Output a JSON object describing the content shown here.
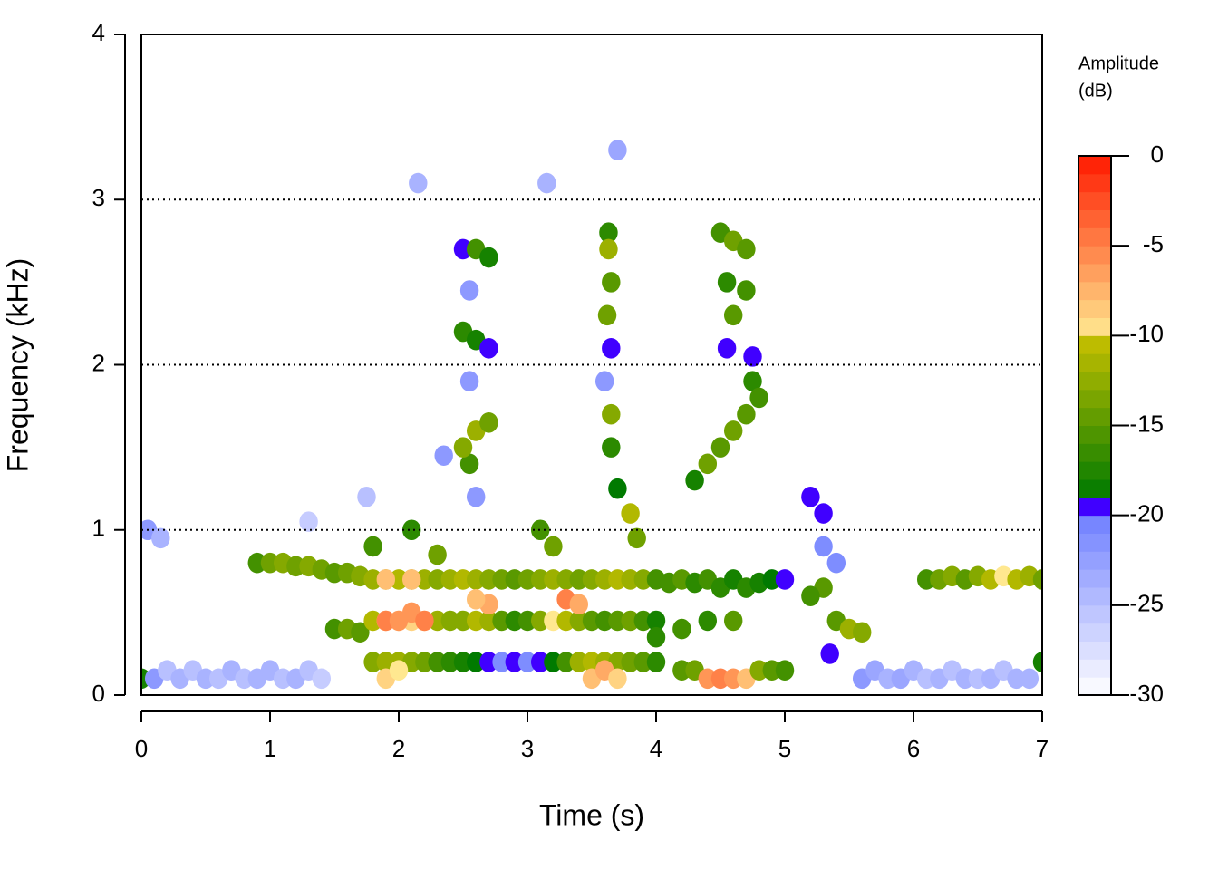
{
  "chart_data": {
    "type": "spectrogram",
    "xlabel": "Time (s)",
    "ylabel": "Frequency (kHz)",
    "xlim": [
      0,
      7
    ],
    "xticks": [
      0,
      1,
      2,
      3,
      4,
      5,
      6,
      7
    ],
    "ylim": [
      0,
      4
    ],
    "yticks": [
      0,
      1,
      2,
      3,
      4
    ],
    "grid": "dotted",
    "colorbar_title": [
      "Amplitude",
      "(dB)"
    ],
    "zlim": [
      -30,
      0
    ],
    "zticks": [
      0,
      -5,
      -10,
      -15,
      -20,
      -25,
      -30
    ],
    "colorscale": [
      [
        -30,
        -20,
        "#ffffff",
        "#7080ff"
      ],
      [
        -20,
        -19,
        "#4000ff",
        "#4000ff"
      ],
      [
        -19,
        -10,
        "#007a00",
        "#c8c000"
      ],
      [
        -10,
        0,
        "#ffe890",
        "#ff1a00"
      ]
    ],
    "cells": [
      [
        0,
        0.1,
        -18
      ],
      [
        0.1,
        0.1,
        -22
      ],
      [
        0.2,
        0.15,
        -25
      ],
      [
        0.3,
        0.1,
        -24
      ],
      [
        0.4,
        0.15,
        -25
      ],
      [
        0.5,
        0.1,
        -24
      ],
      [
        0.6,
        0.1,
        -25
      ],
      [
        0.7,
        0.15,
        -24
      ],
      [
        0.8,
        0.1,
        -25
      ],
      [
        0.9,
        0.1,
        -24
      ],
      [
        1.0,
        0.15,
        -24
      ],
      [
        1.1,
        0.1,
        -25
      ],
      [
        1.2,
        0.1,
        -24
      ],
      [
        1.3,
        0.15,
        -25
      ],
      [
        1.4,
        0.1,
        -26
      ],
      [
        0.05,
        1.0,
        -22
      ],
      [
        0.15,
        0.95,
        -24
      ],
      [
        5.6,
        0.1,
        -22
      ],
      [
        5.7,
        0.15,
        -23
      ],
      [
        5.8,
        0.1,
        -24
      ],
      [
        5.9,
        0.1,
        -23
      ],
      [
        6.0,
        0.15,
        -24
      ],
      [
        6.1,
        0.1,
        -25
      ],
      [
        6.2,
        0.1,
        -24
      ],
      [
        6.3,
        0.15,
        -25
      ],
      [
        6.4,
        0.1,
        -24
      ],
      [
        6.5,
        0.1,
        -25
      ],
      [
        6.6,
        0.1,
        -24
      ],
      [
        6.7,
        0.15,
        -25
      ],
      [
        6.8,
        0.1,
        -24
      ],
      [
        6.9,
        0.1,
        -24
      ],
      [
        7.0,
        0.2,
        -18
      ],
      [
        2.15,
        3.1,
        -24
      ],
      [
        1.75,
        1.2,
        -25
      ],
      [
        1.3,
        1.05,
        -26
      ],
      [
        2.35,
        1.45,
        -22
      ],
      [
        3.7,
        3.3,
        -23
      ],
      [
        3.15,
        3.1,
        -24
      ],
      [
        0.9,
        0.8,
        -16
      ],
      [
        1.0,
        0.8,
        -14
      ],
      [
        1.1,
        0.8,
        -13
      ],
      [
        1.2,
        0.78,
        -14
      ],
      [
        1.3,
        0.78,
        -13
      ],
      [
        1.4,
        0.76,
        -14
      ],
      [
        1.5,
        0.74,
        -15
      ],
      [
        1.6,
        0.74,
        -14
      ],
      [
        1.7,
        0.72,
        -13
      ],
      [
        1.5,
        0.4,
        -16
      ],
      [
        1.6,
        0.4,
        -14
      ],
      [
        1.7,
        0.38,
        -15
      ],
      [
        1.8,
        0.7,
        -12
      ],
      [
        1.8,
        0.45,
        -11
      ],
      [
        1.8,
        0.2,
        -13
      ],
      [
        1.9,
        0.7,
        -11
      ],
      [
        1.9,
        0.45,
        -9
      ],
      [
        1.9,
        0.2,
        -12
      ],
      [
        2.0,
        0.7,
        -11
      ],
      [
        2.0,
        0.45,
        -10
      ],
      [
        2.0,
        0.2,
        -12
      ],
      [
        2.1,
        0.7,
        -12
      ],
      [
        2.1,
        0.45,
        -9
      ],
      [
        2.1,
        0.2,
        -13
      ],
      [
        2.2,
        0.7,
        -12
      ],
      [
        2.2,
        0.45,
        -10
      ],
      [
        2.2,
        0.2,
        -14
      ],
      [
        2.3,
        0.7,
        -13
      ],
      [
        2.3,
        0.45,
        -12
      ],
      [
        2.3,
        0.2,
        -16
      ],
      [
        2.4,
        0.7,
        -12
      ],
      [
        2.4,
        0.45,
        -13
      ],
      [
        2.4,
        0.2,
        -17
      ],
      [
        2.5,
        0.7,
        -11
      ],
      [
        2.5,
        0.45,
        -13
      ],
      [
        2.5,
        0.2,
        -18
      ],
      [
        2.6,
        0.7,
        -12
      ],
      [
        2.6,
        0.45,
        -11
      ],
      [
        2.6,
        0.2,
        -19
      ],
      [
        2.7,
        0.7,
        -13
      ],
      [
        2.7,
        0.45,
        -12
      ],
      [
        2.7,
        0.2,
        -20
      ],
      [
        2.8,
        0.7,
        -14
      ],
      [
        2.8,
        0.45,
        -15
      ],
      [
        2.8,
        0.2,
        -21
      ],
      [
        2.9,
        0.7,
        -15
      ],
      [
        2.9,
        0.45,
        -17
      ],
      [
        2.9,
        0.2,
        -20
      ],
      [
        3.0,
        0.7,
        -14
      ],
      [
        3.0,
        0.45,
        -16
      ],
      [
        3.0,
        0.2,
        -21
      ],
      [
        3.1,
        0.7,
        -13
      ],
      [
        3.1,
        0.45,
        -13
      ],
      [
        3.1,
        0.2,
        -20
      ],
      [
        3.2,
        0.7,
        -12
      ],
      [
        3.2,
        0.45,
        -10
      ],
      [
        3.2,
        0.2,
        -19
      ],
      [
        3.3,
        0.7,
        -13
      ],
      [
        3.3,
        0.45,
        -11
      ],
      [
        3.3,
        0.2,
        -16
      ],
      [
        3.4,
        0.7,
        -14
      ],
      [
        3.4,
        0.45,
        -13
      ],
      [
        3.4,
        0.2,
        -12
      ],
      [
        3.5,
        0.7,
        -13
      ],
      [
        3.5,
        0.45,
        -15
      ],
      [
        3.5,
        0.2,
        -11
      ],
      [
        3.6,
        0.7,
        -12
      ],
      [
        3.6,
        0.45,
        -16
      ],
      [
        3.6,
        0.2,
        -12
      ],
      [
        3.7,
        0.7,
        -11
      ],
      [
        3.7,
        0.45,
        -15
      ],
      [
        3.7,
        0.2,
        -13
      ],
      [
        3.8,
        0.7,
        -12
      ],
      [
        3.8,
        0.45,
        -14
      ],
      [
        3.8,
        0.2,
        -14
      ],
      [
        3.9,
        0.7,
        -13
      ],
      [
        3.9,
        0.45,
        -16
      ],
      [
        3.9,
        0.2,
        -15
      ],
      [
        4.0,
        0.7,
        -16
      ],
      [
        4.0,
        0.45,
        -18
      ],
      [
        4.0,
        0.2,
        -17
      ],
      [
        1.9,
        0.45,
        -5
      ],
      [
        2.0,
        0.45,
        -6
      ],
      [
        2.1,
        0.5,
        -6
      ],
      [
        2.2,
        0.45,
        -5
      ],
      [
        1.9,
        0.7,
        -8
      ],
      [
        2.1,
        0.7,
        -8
      ],
      [
        2.7,
        0.55,
        -7
      ],
      [
        2.6,
        0.58,
        -8
      ],
      [
        3.3,
        0.58,
        -5
      ],
      [
        3.4,
        0.55,
        -7
      ],
      [
        1.9,
        0.1,
        -9
      ],
      [
        2.0,
        0.15,
        -10
      ],
      [
        3.5,
        0.1,
        -8
      ],
      [
        3.6,
        0.15,
        -7
      ],
      [
        3.7,
        0.1,
        -9
      ],
      [
        2.3,
        0.85,
        -14
      ],
      [
        2.1,
        1.0,
        -17
      ],
      [
        1.8,
        0.9,
        -16
      ],
      [
        4.1,
        0.68,
        -16
      ],
      [
        4.2,
        0.7,
        -15
      ],
      [
        4.3,
        0.68,
        -17
      ],
      [
        4.4,
        0.7,
        -16
      ],
      [
        4.5,
        0.65,
        -17
      ],
      [
        4.6,
        0.7,
        -18
      ],
      [
        4.7,
        0.65,
        -17
      ],
      [
        4.8,
        0.68,
        -18
      ],
      [
        4.9,
        0.7,
        -19
      ],
      [
        5.0,
        0.7,
        -20
      ],
      [
        4.0,
        0.35,
        -17
      ],
      [
        4.2,
        0.4,
        -16
      ],
      [
        4.4,
        0.45,
        -17
      ],
      [
        4.6,
        0.45,
        -15
      ],
      [
        4.2,
        0.15,
        -15
      ],
      [
        4.3,
        0.15,
        -14
      ],
      [
        4.4,
        0.1,
        -6
      ],
      [
        4.5,
        0.1,
        -5
      ],
      [
        4.6,
        0.1,
        -6
      ],
      [
        4.7,
        0.1,
        -8
      ],
      [
        4.8,
        0.15,
        -13
      ],
      [
        4.9,
        0.15,
        -15
      ],
      [
        5.0,
        0.15,
        -16
      ],
      [
        5.2,
        1.2,
        -20
      ],
      [
        5.3,
        1.1,
        -20
      ],
      [
        5.3,
        0.9,
        -21
      ],
      [
        5.4,
        0.8,
        -21
      ],
      [
        5.3,
        0.65,
        -15
      ],
      [
        5.2,
        0.6,
        -16
      ],
      [
        5.4,
        0.45,
        -15
      ],
      [
        5.5,
        0.4,
        -12
      ],
      [
        5.6,
        0.38,
        -13
      ],
      [
        5.35,
        0.25,
        -20
      ],
      [
        6.1,
        0.7,
        -16
      ],
      [
        6.2,
        0.7,
        -14
      ],
      [
        6.3,
        0.72,
        -13
      ],
      [
        6.4,
        0.7,
        -15
      ],
      [
        6.5,
        0.72,
        -13
      ],
      [
        6.6,
        0.7,
        -11
      ],
      [
        6.7,
        0.72,
        -10
      ],
      [
        6.8,
        0.7,
        -11
      ],
      [
        6.9,
        0.72,
        -12
      ],
      [
        7.0,
        0.7,
        -14
      ],
      [
        2.55,
        1.9,
        -22
      ],
      [
        2.55,
        2.45,
        -22
      ],
      [
        2.6,
        1.2,
        -22
      ],
      [
        2.5,
        2.7,
        -20
      ],
      [
        2.6,
        2.7,
        -16
      ],
      [
        2.7,
        2.65,
        -18
      ],
      [
        2.5,
        2.2,
        -17
      ],
      [
        2.6,
        2.15,
        -18
      ],
      [
        2.7,
        2.1,
        -20
      ],
      [
        2.55,
        1.4,
        -16
      ],
      [
        2.5,
        1.5,
        -13
      ],
      [
        2.6,
        1.6,
        -12
      ],
      [
        2.7,
        1.65,
        -14
      ],
      [
        3.6,
        1.9,
        -22
      ],
      [
        3.63,
        2.8,
        -17
      ],
      [
        3.63,
        2.7,
        -12
      ],
      [
        3.65,
        2.5,
        -15
      ],
      [
        3.62,
        2.3,
        -14
      ],
      [
        3.65,
        2.1,
        -20
      ],
      [
        3.65,
        1.7,
        -13
      ],
      [
        3.65,
        1.5,
        -17
      ],
      [
        3.7,
        1.25,
        -19
      ],
      [
        3.8,
        1.1,
        -11
      ],
      [
        3.85,
        0.95,
        -14
      ],
      [
        3.1,
        1.0,
        -16
      ],
      [
        3.2,
        0.9,
        -14
      ],
      [
        4.75,
        2.05,
        -20
      ],
      [
        4.55,
        2.1,
        -20
      ],
      [
        4.3,
        1.3,
        -18
      ],
      [
        4.5,
        2.8,
        -16
      ],
      [
        4.6,
        2.75,
        -14
      ],
      [
        4.7,
        2.7,
        -15
      ],
      [
        4.55,
        2.5,
        -17
      ],
      [
        4.7,
        2.45,
        -16
      ],
      [
        4.6,
        2.3,
        -15
      ],
      [
        4.75,
        1.9,
        -17
      ],
      [
        4.8,
        1.8,
        -16
      ],
      [
        4.7,
        1.7,
        -15
      ],
      [
        4.6,
        1.6,
        -14
      ],
      [
        4.5,
        1.5,
        -15
      ],
      [
        4.4,
        1.4,
        -14
      ]
    ]
  }
}
